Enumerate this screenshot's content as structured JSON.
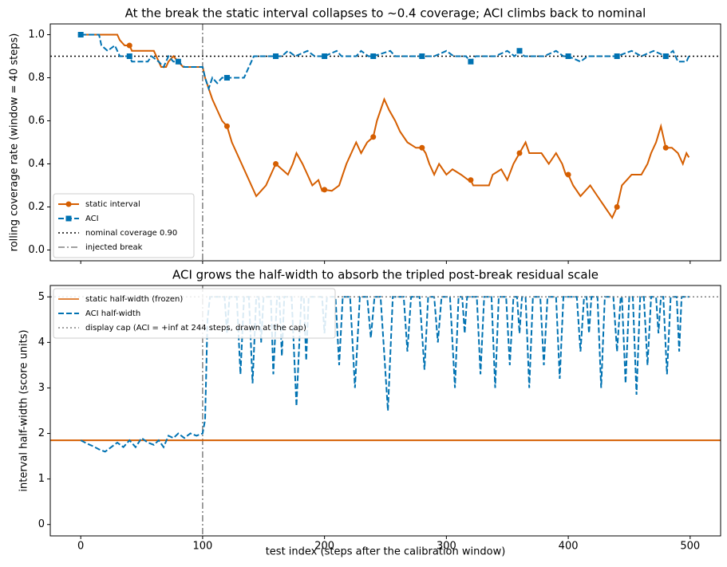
{
  "chart_data": [
    {
      "type": "line",
      "title": "At the break the static interval collapses to ~0.4 coverage; ACI climbs back to nominal",
      "ylabel": "rolling coverage rate (window = 40 steps)",
      "xlim": [
        -25,
        525
      ],
      "xticks": [
        0,
        100,
        200,
        300,
        400,
        500
      ],
      "show_xticklabels": false,
      "ylim": [
        -0.05,
        1.05
      ],
      "yticks": [
        {
          "value": 0,
          "label": "0.0"
        },
        {
          "value": 0.2,
          "label": "0.2"
        },
        {
          "value": 0.4,
          "label": "0.4"
        },
        {
          "value": 0.6,
          "label": "0.6"
        },
        {
          "value": 0.8,
          "label": "0.8"
        },
        {
          "value": 1,
          "label": "1.0"
        }
      ],
      "legend": "lower left",
      "markevery": 40,
      "series": [
        {
          "name": "static interval",
          "color": "#d55e00",
          "dash": "solid",
          "marker": "o",
          "x": [
            0,
            30,
            32,
            36,
            40,
            42,
            55,
            60,
            62,
            64,
            66,
            70,
            72,
            76,
            80,
            84,
            100,
            102,
            105,
            108,
            112,
            116,
            120,
            124,
            128,
            132,
            136,
            140,
            144,
            148,
            152,
            156,
            160,
            165,
            170,
            174,
            177,
            182,
            186,
            190,
            195,
            198,
            200,
            206,
            212,
            215,
            218,
            222,
            226,
            230,
            235,
            240,
            243,
            246,
            249,
            253,
            258,
            262,
            268,
            275,
            280,
            283,
            286,
            290,
            294,
            300,
            305,
            312,
            318,
            320,
            322,
            335,
            338,
            345,
            350,
            355,
            360,
            365,
            368,
            378,
            384,
            390,
            395,
            398,
            400,
            404,
            410,
            418,
            424,
            430,
            436,
            440,
            444,
            448,
            452,
            460,
            465,
            468,
            472,
            476,
            480,
            485,
            490,
            494,
            497,
            499
          ],
          "values": [
            1.0,
            1.0,
            0.975,
            0.95,
            0.95,
            0.925,
            0.925,
            0.925,
            0.9,
            0.875,
            0.85,
            0.85,
            0.875,
            0.9,
            0.875,
            0.85,
            0.85,
            0.8,
            0.75,
            0.7,
            0.65,
            0.6,
            0.575,
            0.5,
            0.45,
            0.4,
            0.35,
            0.3,
            0.25,
            0.275,
            0.3,
            0.35,
            0.4,
            0.375,
            0.35,
            0.4,
            0.45,
            0.4,
            0.35,
            0.3,
            0.325,
            0.275,
            0.28,
            0.275,
            0.3,
            0.35,
            0.4,
            0.45,
            0.5,
            0.45,
            0.5,
            0.525,
            0.6,
            0.65,
            0.7,
            0.65,
            0.6,
            0.55,
            0.5,
            0.475,
            0.475,
            0.45,
            0.4,
            0.35,
            0.4,
            0.35,
            0.375,
            0.35,
            0.325,
            0.325,
            0.3,
            0.3,
            0.35,
            0.375,
            0.325,
            0.4,
            0.45,
            0.5,
            0.45,
            0.45,
            0.4,
            0.45,
            0.4,
            0.35,
            0.35,
            0.3,
            0.25,
            0.3,
            0.25,
            0.2,
            0.15,
            0.2,
            0.3,
            0.325,
            0.35,
            0.35,
            0.4,
            0.45,
            0.5,
            0.575,
            0.475,
            0.475,
            0.45,
            0.4,
            0.45,
            0.43
          ]
        },
        {
          "name": "ACI",
          "color": "#0072b2",
          "dash": "dashed",
          "marker": "s",
          "x": [
            0,
            15,
            17,
            22,
            28,
            32,
            40,
            42,
            55,
            58,
            64,
            68,
            72,
            76,
            80,
            85,
            100,
            102,
            105,
            108,
            112,
            116,
            120,
            128,
            134,
            138,
            142,
            150,
            160,
            165,
            170,
            176,
            186,
            192,
            200,
            210,
            214,
            226,
            230,
            236,
            240,
            254,
            258,
            270,
            280,
            290,
            300,
            306,
            316,
            320,
            324,
            340,
            350,
            356,
            360,
            364,
            380,
            390,
            396,
            400,
            410,
            416,
            430,
            440,
            452,
            460,
            470,
            480,
            486,
            490,
            497,
            499
          ],
          "values": [
            1.0,
            1.0,
            0.95,
            0.925,
            0.95,
            0.9,
            0.9,
            0.875,
            0.875,
            0.9,
            0.875,
            0.85,
            0.9,
            0.875,
            0.875,
            0.85,
            0.85,
            0.8,
            0.75,
            0.8,
            0.775,
            0.8,
            0.8,
            0.8,
            0.8,
            0.85,
            0.9,
            0.9,
            0.9,
            0.9,
            0.925,
            0.9,
            0.925,
            0.9,
            0.9,
            0.925,
            0.9,
            0.9,
            0.925,
            0.9,
            0.9,
            0.925,
            0.9,
            0.9,
            0.9,
            0.9,
            0.925,
            0.9,
            0.9,
            0.875,
            0.9,
            0.9,
            0.925,
            0.9,
            0.925,
            0.9,
            0.9,
            0.925,
            0.9,
            0.9,
            0.875,
            0.9,
            0.9,
            0.9,
            0.925,
            0.9,
            0.925,
            0.9,
            0.925,
            0.875,
            0.875,
            0.9
          ]
        }
      ],
      "hlines": [
        {
          "name": "nominal coverage 0.90",
          "value": 0.9,
          "color": "#000000",
          "dash": "dotted"
        }
      ],
      "vlines": [
        {
          "name": "injected break",
          "value": 100,
          "color": "#808080",
          "dash": "dashdot"
        }
      ]
    },
    {
      "type": "line",
      "title": "ACI grows the half-width to absorb the tripled post-break residual scale",
      "xlabel": "test index (steps after the calibration window)",
      "ylabel": "interval half-width (score units)",
      "xlim": [
        -25,
        525
      ],
      "xticks": [
        0,
        100,
        200,
        300,
        400,
        500
      ],
      "show_xticklabels": true,
      "ylim": [
        -0.25,
        5.25
      ],
      "yticks": [
        0,
        1,
        2,
        3,
        4,
        5
      ],
      "legend": "upper left",
      "hlines": [
        {
          "name": "static half-width (frozen)",
          "value": 1.85,
          "color": "#d55e00",
          "dash": "solid"
        }
      ],
      "series": [
        {
          "name": "ACI half-width",
          "color": "#0072b2",
          "dash": "dashed",
          "x": [
            0,
            5,
            10,
            15,
            20,
            25,
            30,
            35,
            40,
            45,
            50,
            55,
            60,
            64,
            68,
            72,
            76,
            80,
            85,
            90,
            95,
            100,
            102,
            104,
            106,
            118,
            120,
            122,
            128,
            131,
            134,
            138,
            141,
            144,
            146,
            148,
            150,
            156,
            158,
            161,
            163,
            165,
            167,
            173,
            177,
            181,
            183,
            185,
            187,
            198,
            200,
            202,
            209,
            212,
            215,
            221,
            225,
            229,
            235,
            238,
            241,
            246,
            252,
            256,
            265,
            268,
            271,
            278,
            282,
            285,
            290,
            293,
            296,
            303,
            307,
            310,
            313,
            315,
            317,
            325,
            328,
            331,
            337,
            340,
            343,
            349,
            352,
            355,
            358,
            360,
            362,
            365,
            368,
            371,
            377,
            380,
            383,
            390,
            393,
            396,
            407,
            410,
            413,
            415,
            417,
            419,
            424,
            427,
            430,
            437,
            440,
            443,
            444,
            447,
            450,
            453,
            456,
            459,
            462,
            465,
            468,
            472,
            474,
            476,
            478,
            481,
            484,
            489,
            491,
            493,
            499
          ],
          "values": [
            1.85,
            1.78,
            1.72,
            1.65,
            1.6,
            1.7,
            1.8,
            1.7,
            1.85,
            1.7,
            1.9,
            1.8,
            1.75,
            1.85,
            1.7,
            1.95,
            1.9,
            2.0,
            1.9,
            2.0,
            1.95,
            2.0,
            2.3,
            4.5,
            5.0,
            5.0,
            4.2,
            5.0,
            5.0,
            3.3,
            5.0,
            5.0,
            3.1,
            5.0,
            5.0,
            4.0,
            5.0,
            5.0,
            3.3,
            5.0,
            5.0,
            3.7,
            5.0,
            5.0,
            2.6,
            5.0,
            5.0,
            3.6,
            5.0,
            5.0,
            4.2,
            5.0,
            5.0,
            3.5,
            5.0,
            5.0,
            3.0,
            5.0,
            5.0,
            4.1,
            5.0,
            5.0,
            2.5,
            5.0,
            5.0,
            3.8,
            5.0,
            5.0,
            3.4,
            5.0,
            5.0,
            4.0,
            5.0,
            5.0,
            3.0,
            5.0,
            5.0,
            4.2,
            5.0,
            5.0,
            3.3,
            5.0,
            5.0,
            3.0,
            5.0,
            5.0,
            3.5,
            5.0,
            5.0,
            4.2,
            5.0,
            5.0,
            3.0,
            5.0,
            5.0,
            3.5,
            5.0,
            5.0,
            3.2,
            5.0,
            5.0,
            3.8,
            5.0,
            5.0,
            4.2,
            5.0,
            5.0,
            3.0,
            5.0,
            5.0,
            3.8,
            5.0,
            5.0,
            3.1,
            5.0,
            5.0,
            2.85,
            5.0,
            5.0,
            3.5,
            5.0,
            5.0,
            4.2,
            5.0,
            5.0,
            3.3,
            5.0,
            5.0,
            3.8,
            5.0,
            5.0
          ]
        }
      ],
      "hlines2": [],
      "caps": [
        {
          "name": "display cap (ACI = +inf at 244 steps, drawn at the cap)",
          "value": 5,
          "color": "#808080",
          "dash": "dotted"
        }
      ],
      "vlines": [
        {
          "value": 100,
          "color": "#808080",
          "dash": "dashdot"
        }
      ]
    }
  ]
}
